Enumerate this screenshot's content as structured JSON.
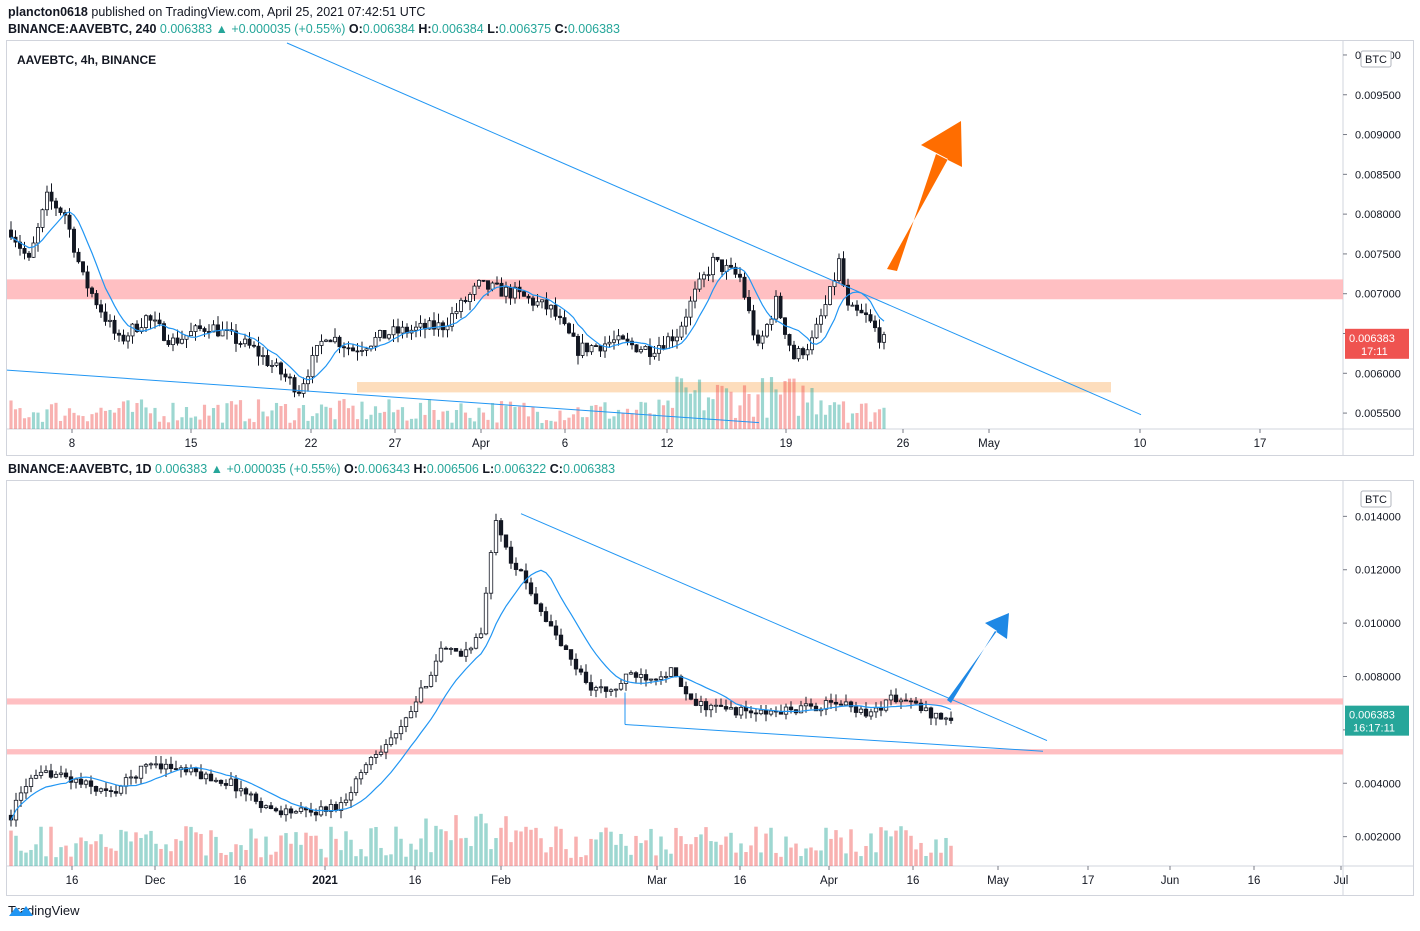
{
  "header": {
    "user": "plancton0618",
    "published": "published on TradingView.com, April 25, 2021 07:42:51 UTC"
  },
  "chart_data": [
    {
      "type": "candlestick",
      "legend": {
        "symbol": "BINANCE:AAVEBTC, 240",
        "price": "0.006383",
        "change": "+0.000035 (+0.55%)",
        "o_label": "O:",
        "o": "0.006384",
        "h_label": "H:",
        "h": "0.006384",
        "l_label": "L:",
        "l": "0.006375",
        "c_label": "C:",
        "c": "0.006383"
      },
      "title": "AAVEBTC, 4h, BINANCE",
      "currency": "BTC",
      "y_ticks": [
        0.0055,
        0.006,
        0.0065,
        0.007,
        0.0075,
        0.008,
        0.0085,
        0.009,
        0.0095,
        0.01
      ],
      "y_tick_labels": [
        "0.005500",
        "0.006000",
        "0.006500",
        "0.007000",
        "0.007500",
        "0.008000",
        "0.008500",
        "0.009000",
        "0.009500",
        "0.010000"
      ],
      "ylim": [
        0.0053,
        0.0101
      ],
      "x_ticks": [
        "8",
        "15",
        "22",
        "27",
        "Apr",
        "6",
        "12",
        "19",
        "26",
        "May",
        "10",
        "17"
      ],
      "last_price_label": "0.006383",
      "countdown": "17:11",
      "price_anchors": [
        [
          0,
          0.0078
        ],
        [
          4,
          0.0074
        ],
        [
          8,
          0.0082
        ],
        [
          12,
          0.008
        ],
        [
          16,
          0.0072
        ],
        [
          20,
          0.0068
        ],
        [
          24,
          0.0064
        ],
        [
          30,
          0.0067
        ],
        [
          36,
          0.0064
        ],
        [
          44,
          0.0066
        ],
        [
          54,
          0.0063
        ],
        [
          60,
          0.006
        ],
        [
          64,
          0.0058
        ],
        [
          70,
          0.0065
        ],
        [
          76,
          0.0063
        ],
        [
          84,
          0.0065
        ],
        [
          96,
          0.0066
        ],
        [
          104,
          0.0071
        ],
        [
          112,
          0.007
        ],
        [
          120,
          0.0068
        ],
        [
          126,
          0.0063
        ],
        [
          134,
          0.0064
        ],
        [
          142,
          0.0063
        ],
        [
          148,
          0.0065
        ],
        [
          152,
          0.007
        ],
        [
          156,
          0.0074
        ],
        [
          162,
          0.0072
        ],
        [
          166,
          0.0063
        ],
        [
          170,
          0.0069
        ],
        [
          174,
          0.0062
        ],
        [
          178,
          0.0064
        ],
        [
          182,
          0.007
        ],
        [
          184,
          0.0074
        ],
        [
          186,
          0.0068
        ],
        [
          190,
          0.0067
        ],
        [
          194,
          0.0064
        ]
      ],
      "zones": [
        {
          "name": "resistance",
          "y0": 0.00693,
          "y1": 0.00718,
          "color": "#ffb8bb"
        },
        {
          "name": "support",
          "y0": 0.00576,
          "y1": 0.00589,
          "color": "#fdd9b5"
        }
      ],
      "colors": {
        "up": "#26a69a",
        "down": "#ef5350",
        "ma": "#2196f3",
        "trend": "#2196f3",
        "arrow": "#ff6d00"
      }
    },
    {
      "type": "candlestick",
      "legend": {
        "symbol": "BINANCE:AAVEBTC, 1D",
        "price": "0.006383",
        "change": "+0.000035 (+0.55%)",
        "o_label": "O:",
        "o": "0.006343",
        "h_label": "H:",
        "h": "0.006506",
        "l_label": "L:",
        "l": "0.006322",
        "c_label": "C:",
        "c": "0.006383"
      },
      "currency": "BTC",
      "y_ticks": [
        0.002,
        0.004,
        0.006,
        0.008,
        0.01,
        0.012,
        0.014
      ],
      "y_tick_labels": [
        "0.002000",
        "0.004000",
        "0.006000",
        "0.008000",
        "0.010000",
        "0.012000",
        "0.014000"
      ],
      "ylim": [
        0.0009,
        0.0151
      ],
      "x_ticks": [
        "16",
        "Dec",
        "16",
        "2021",
        "16",
        "Feb",
        "Mar",
        "16",
        "Apr",
        "16",
        "May",
        "17",
        "Jun",
        "16",
        "Jul"
      ],
      "last_price_label": "0.006383",
      "countdown": "16:17:11",
      "price_anchors": [
        [
          0,
          0.0028
        ],
        [
          3,
          0.004
        ],
        [
          8,
          0.0044
        ],
        [
          14,
          0.004
        ],
        [
          20,
          0.0036
        ],
        [
          28,
          0.0048
        ],
        [
          36,
          0.0044
        ],
        [
          44,
          0.004
        ],
        [
          52,
          0.003
        ],
        [
          60,
          0.0029
        ],
        [
          66,
          0.0032
        ],
        [
          72,
          0.005
        ],
        [
          78,
          0.006
        ],
        [
          82,
          0.0074
        ],
        [
          86,
          0.009
        ],
        [
          90,
          0.0088
        ],
        [
          94,
          0.0096
        ],
        [
          97,
          0.014
        ],
        [
          100,
          0.0124
        ],
        [
          104,
          0.0112
        ],
        [
          108,
          0.0098
        ],
        [
          112,
          0.0086
        ],
        [
          116,
          0.0076
        ],
        [
          120,
          0.0074
        ],
        [
          124,
          0.0081
        ],
        [
          128,
          0.008
        ],
        [
          132,
          0.0082
        ],
        [
          136,
          0.007
        ],
        [
          142,
          0.0068
        ],
        [
          150,
          0.0066
        ],
        [
          158,
          0.0068
        ],
        [
          166,
          0.007
        ],
        [
          172,
          0.0066
        ],
        [
          176,
          0.0072
        ],
        [
          180,
          0.007
        ],
        [
          184,
          0.0066
        ],
        [
          188,
          0.0064
        ]
      ],
      "zones": [
        {
          "name": "resistance",
          "y0": 0.00695,
          "y1": 0.00718,
          "color": "#ffb8bb"
        },
        {
          "name": "support",
          "y0": 0.00508,
          "y1": 0.00528,
          "color": "#ffb8bb"
        }
      ],
      "colors": {
        "up": "#26a69a",
        "down": "#ef5350",
        "ma": "#2196f3",
        "trend": "#2196f3",
        "arrow": "#1e88e5"
      }
    }
  ],
  "footer": {
    "brand": "TradingView"
  }
}
